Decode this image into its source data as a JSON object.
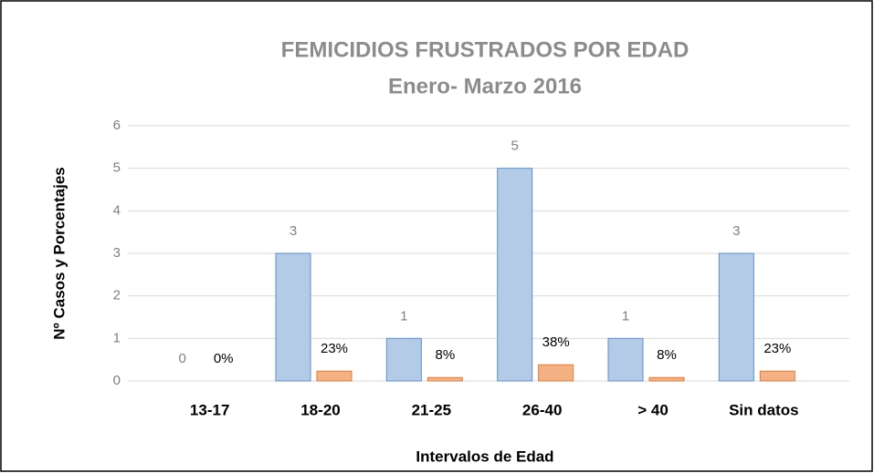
{
  "chart_data": {
    "type": "bar",
    "title": "FEMICIDIOS FRUSTRADOS POR EDAD",
    "subtitle": "Enero- Marzo 2016",
    "x_label": "Intervalos de Edad",
    "y_label": "Nº Casos y Porcentajes",
    "categories": [
      "13-17",
      "18-20",
      "21-25",
      "26-40",
      "> 40",
      "Sin datos"
    ],
    "series": [
      {
        "color": "#b4cbe8",
        "values": [
          0,
          3,
          1,
          5,
          1,
          3
        ]
      },
      {
        "color": "#f4b183",
        "values": [
          0,
          0.23,
          0.08,
          0.38,
          0.08,
          0.23
        ],
        "value_labels": [
          "0%",
          "23%",
          "8%",
          "38%",
          "8%",
          "23%"
        ]
      }
    ],
    "ylim": [
      0,
      6
    ],
    "yticks": [
      0,
      1,
      2,
      3,
      4,
      5,
      6
    ],
    "grid": true
  }
}
